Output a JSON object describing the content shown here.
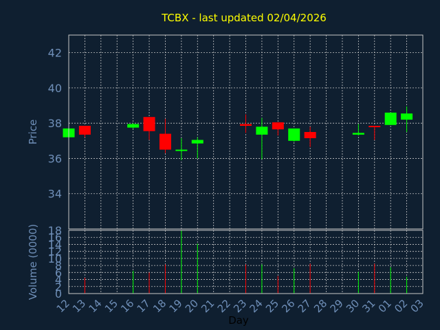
{
  "chart_data": [
    {
      "type": "candlestick",
      "title": "TCBX - last updated 02/04/2026",
      "ylabel": "Price",
      "xlabel": "Day",
      "ylim": [
        32,
        43
      ],
      "y_ticks": [
        34,
        36,
        38,
        40,
        42
      ],
      "grid": true,
      "colors": {
        "up": "#00ff00",
        "down": "#ff0000",
        "grid": "#c8c8c8",
        "frame": "#c8c8c8",
        "title": "#ffff00",
        "labels": "#6f8fb8",
        "background": "#0f1f30"
      },
      "x_ticks": [
        "12",
        "13",
        "14",
        "15",
        "16",
        "17",
        "18",
        "19",
        "20",
        "21",
        "22",
        "23",
        "24",
        "25",
        "26",
        "27",
        "28",
        "29",
        "30",
        "31",
        "01",
        "02",
        "03"
      ],
      "candles": [
        {
          "day": "12",
          "open": 37.2,
          "high": 37.7,
          "low": 37.2,
          "close": 37.7
        },
        {
          "day": "13",
          "open": 37.85,
          "high": 37.85,
          "low": 37.2,
          "close": 37.35
        },
        {
          "day": "16",
          "open": 37.75,
          "high": 38.0,
          "low": 37.7,
          "close": 37.95
        },
        {
          "day": "17",
          "open": 38.35,
          "high": 38.35,
          "low": 37.05,
          "close": 37.55
        },
        {
          "day": "18",
          "open": 37.4,
          "high": 38.25,
          "low": 36.3,
          "close": 36.5
        },
        {
          "day": "19",
          "open": 36.45,
          "high": 37.15,
          "low": 35.9,
          "close": 36.5
        },
        {
          "day": "20",
          "open": 36.85,
          "high": 37.2,
          "low": 36.0,
          "close": 37.05
        },
        {
          "day": "23",
          "open": 37.95,
          "high": 38.5,
          "low": 37.45,
          "close": 37.85
        },
        {
          "day": "24",
          "open": 37.35,
          "high": 38.3,
          "low": 35.95,
          "close": 37.8
        },
        {
          "day": "25",
          "open": 38.05,
          "high": 38.05,
          "low": 37.3,
          "close": 37.65
        },
        {
          "day": "26",
          "open": 37.0,
          "high": 37.7,
          "low": 36.95,
          "close": 37.7
        },
        {
          "day": "27",
          "open": 37.5,
          "high": 37.8,
          "low": 36.65,
          "close": 37.15
        },
        {
          "day": "30",
          "open": 37.35,
          "high": 37.95,
          "low": 37.3,
          "close": 37.45
        },
        {
          "day": "31",
          "open": 37.85,
          "high": 37.85,
          "low": 37.05,
          "close": 37.8
        },
        {
          "day": "01",
          "open": 37.9,
          "high": 38.6,
          "low": 37.9,
          "close": 38.6
        },
        {
          "day": "02",
          "open": 38.2,
          "high": 38.95,
          "low": 37.5,
          "close": 38.55
        }
      ]
    },
    {
      "type": "bar",
      "ylabel": "Volume (0000)",
      "xlabel": "Day",
      "ylim": [
        0,
        18
      ],
      "y_ticks": [
        0,
        2,
        4,
        6,
        8,
        10,
        12,
        14,
        16,
        18
      ],
      "grid": true,
      "categories": [
        "12",
        "13",
        "14",
        "15",
        "16",
        "17",
        "18",
        "19",
        "20",
        "21",
        "22",
        "23",
        "24",
        "25",
        "26",
        "27",
        "28",
        "29",
        "30",
        "31",
        "01",
        "02",
        "03"
      ],
      "volumes": [
        {
          "day": "13",
          "value": 4.5,
          "direction": "down"
        },
        {
          "day": "16",
          "value": 6.5,
          "direction": "up"
        },
        {
          "day": "17",
          "value": 6.0,
          "direction": "down"
        },
        {
          "day": "18",
          "value": 8.3,
          "direction": "down"
        },
        {
          "day": "19",
          "value": 18.0,
          "direction": "up"
        },
        {
          "day": "20",
          "value": 14.2,
          "direction": "up"
        },
        {
          "day": "23",
          "value": 8.3,
          "direction": "down"
        },
        {
          "day": "24",
          "value": 8.3,
          "direction": "up"
        },
        {
          "day": "25",
          "value": 5.0,
          "direction": "down"
        },
        {
          "day": "26",
          "value": 7.2,
          "direction": "up"
        },
        {
          "day": "27",
          "value": 8.5,
          "direction": "down"
        },
        {
          "day": "30",
          "value": 6.2,
          "direction": "up"
        },
        {
          "day": "31",
          "value": 8.5,
          "direction": "down"
        },
        {
          "day": "01",
          "value": 7.5,
          "direction": "up"
        },
        {
          "day": "02",
          "value": 4.8,
          "direction": "up"
        }
      ]
    }
  ]
}
